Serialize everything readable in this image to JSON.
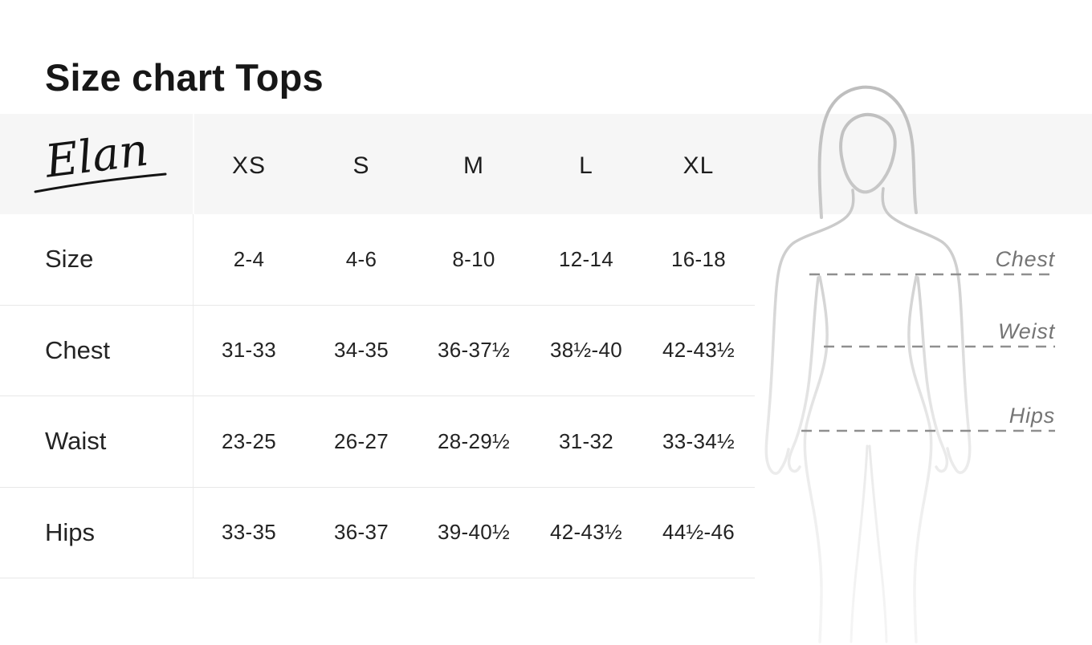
{
  "page": {
    "title": "Size chart Tops"
  },
  "brand": {
    "logo_text": "Elan"
  },
  "table": {
    "columns": [
      "XS",
      "S",
      "M",
      "L",
      "XL"
    ],
    "rows": [
      {
        "label": "Size",
        "values": [
          "2-4",
          "4-6",
          "8-10",
          "12-14",
          "16-18"
        ]
      },
      {
        "label": "Chest",
        "values": [
          "31-33",
          "34-35",
          "36-37½",
          "38½-40",
          "42-43½"
        ]
      },
      {
        "label": "Waist",
        "values": [
          "23-25",
          "26-27",
          "28-29½",
          "31-32",
          "33-34½"
        ]
      },
      {
        "label": "Hips",
        "values": [
          "33-35",
          "36-37",
          "39-40½",
          "42-43½",
          "44½-46"
        ]
      }
    ]
  },
  "figure": {
    "chest_label": "Chest",
    "waist_label": "Weist",
    "hips_label": "Hips"
  },
  "colors": {
    "header_band": "#f6f6f6",
    "row_divider": "#e8e8e8",
    "text": "#1f1f1f",
    "figure_stroke_top": "#bfbfbf",
    "figure_stroke_bottom": "#f3f3f3",
    "dashed_line": "#8f8f8f",
    "figure_label": "#757575"
  },
  "chart_data": {
    "type": "table",
    "title": "Size chart Tops",
    "columns": [
      "XS",
      "S",
      "M",
      "L",
      "XL"
    ],
    "rows": [
      {
        "label": "Size",
        "values": [
          "2-4",
          "4-6",
          "8-10",
          "12-14",
          "16-18"
        ]
      },
      {
        "label": "Chest",
        "values": [
          "31-33",
          "34-35",
          "36-37½",
          "38½-40",
          "42-43½"
        ]
      },
      {
        "label": "Waist",
        "values": [
          "23-25",
          "26-27",
          "28-29½",
          "31-32",
          "33-34½"
        ]
      },
      {
        "label": "Hips",
        "values": [
          "33-35",
          "36-37",
          "39-40½",
          "42-43½",
          "44½-46"
        ]
      }
    ],
    "annotations": [
      "Chest",
      "Weist",
      "Hips"
    ]
  }
}
